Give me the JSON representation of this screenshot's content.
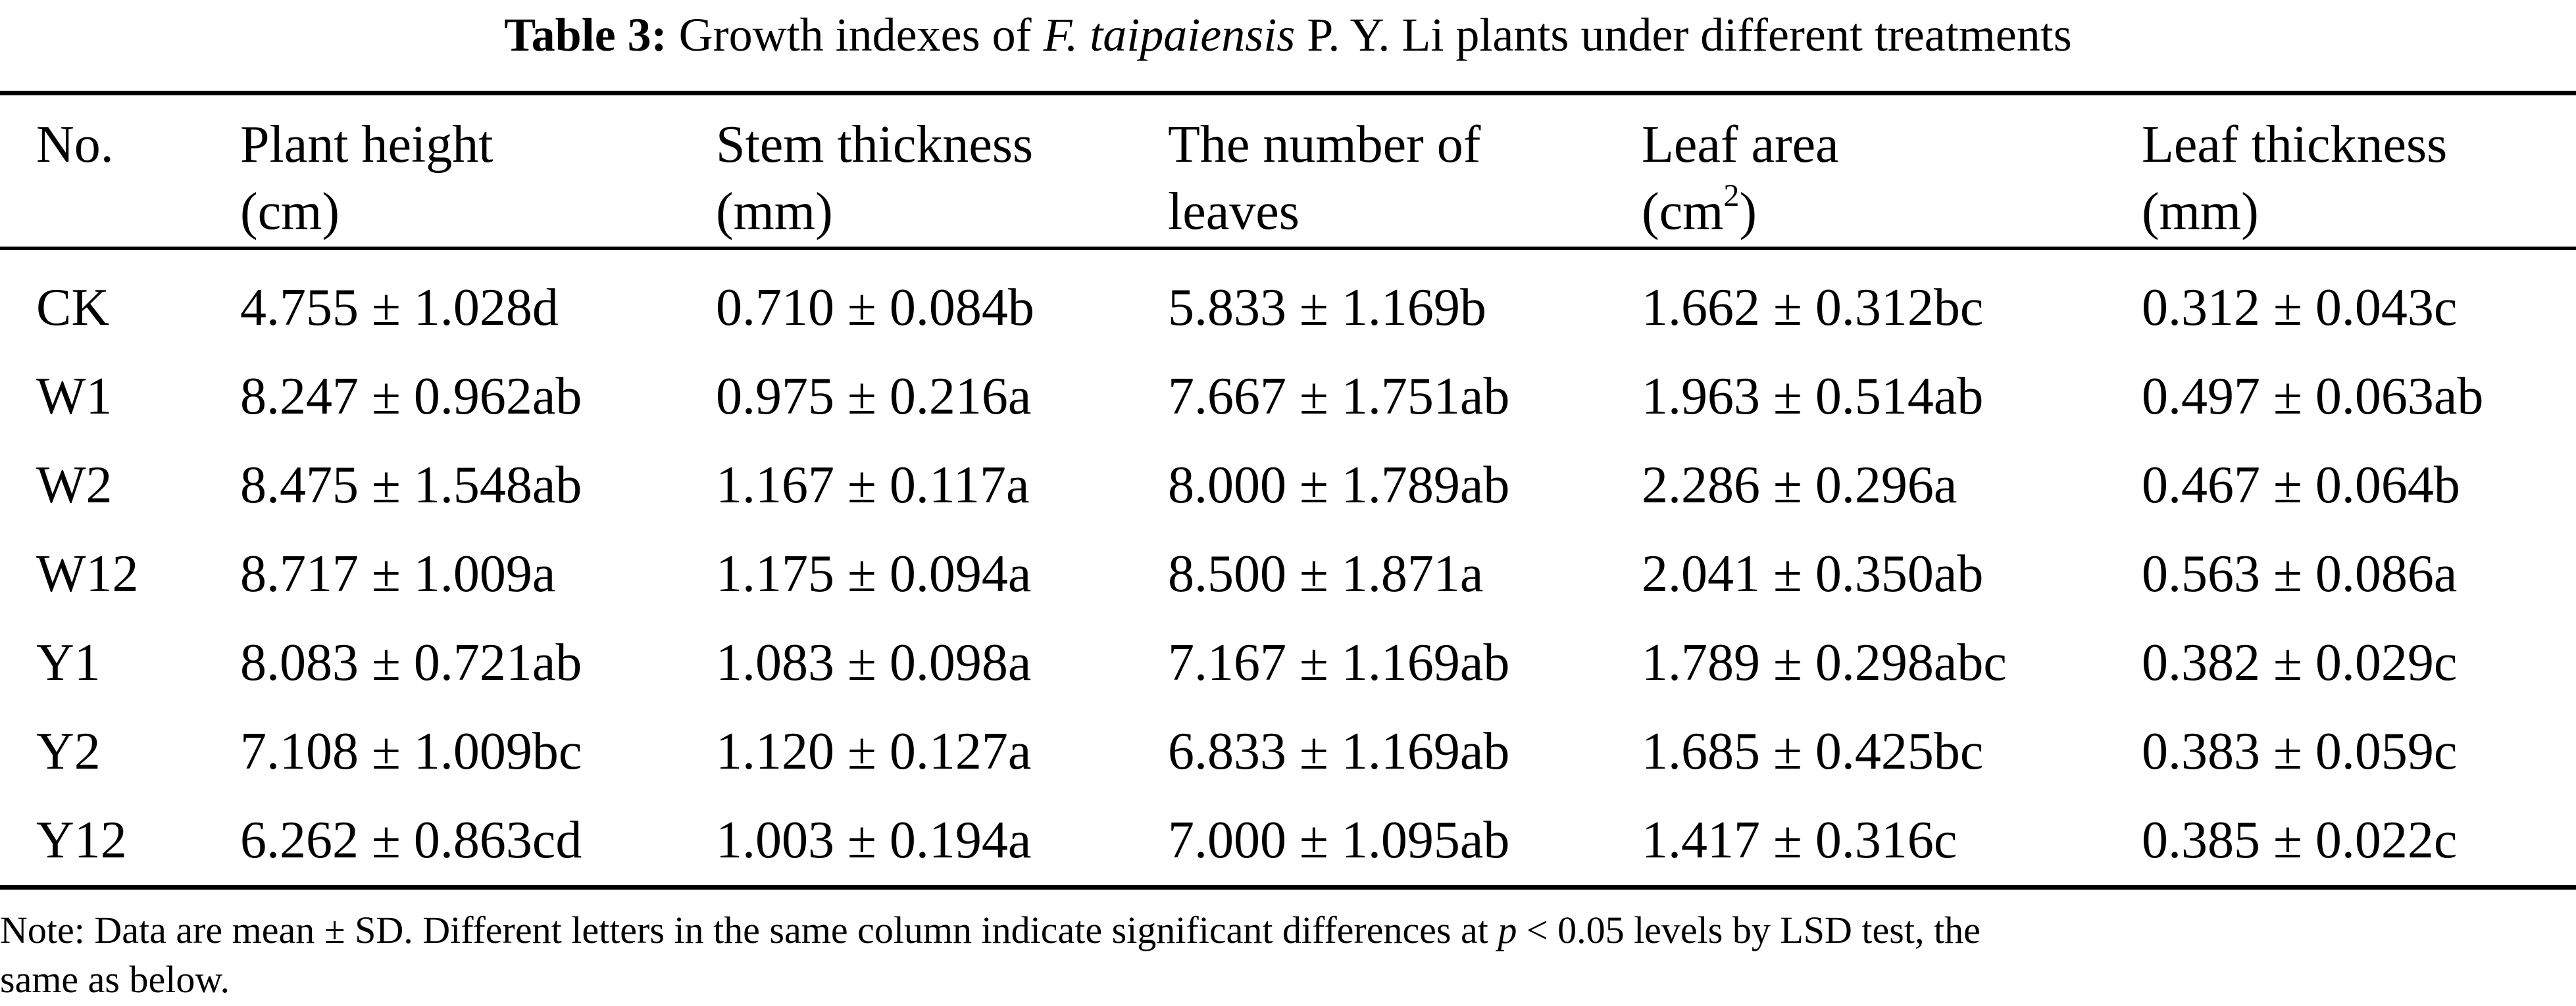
{
  "title": {
    "label": "Table 3:",
    "text_before": " Growth indexes of ",
    "species": "F. taipaiensis",
    "text_after": " P. Y. Li plants under different treatments"
  },
  "columns": [
    {
      "line1": "No.",
      "line2": ""
    },
    {
      "line1": "Plant height",
      "line2": "(cm)"
    },
    {
      "line1": "Stem thickness",
      "line2": "(mm)"
    },
    {
      "line1": "The number of",
      "line2": "leaves"
    },
    {
      "line1": "Leaf area",
      "line2": "(cm",
      "sup": "2",
      "line2_end": ")"
    },
    {
      "line1": "Leaf thickness",
      "line2": "(mm)"
    }
  ],
  "rows": [
    [
      "CK",
      "4.755 ± 1.028d",
      "0.710 ± 0.084b",
      "5.833 ± 1.169b",
      "1.662 ± 0.312bc",
      "0.312 ± 0.043c"
    ],
    [
      "W1",
      "8.247 ± 0.962ab",
      "0.975 ± 0.216a",
      "7.667 ± 1.751ab",
      "1.963 ± 0.514ab",
      "0.497 ± 0.063ab"
    ],
    [
      "W2",
      "8.475 ± 1.548ab",
      "1.167 ± 0.117a",
      "8.000 ± 1.789ab",
      "2.286 ± 0.296a",
      "0.467 ± 0.064b"
    ],
    [
      "W12",
      "8.717 ± 1.009a",
      "1.175 ± 0.094a",
      "8.500 ± 1.871a",
      "2.041 ± 0.350ab",
      "0.563 ± 0.086a"
    ],
    [
      "Y1",
      "8.083 ± 0.721ab",
      "1.083 ± 0.098a",
      "7.167 ± 1.169ab",
      "1.789 ± 0.298abc",
      "0.382 ± 0.029c"
    ],
    [
      "Y2",
      "7.108 ± 1.009bc",
      "1.120 ± 0.127a",
      "6.833 ± 1.169ab",
      "1.685 ± 0.425bc",
      "0.383 ± 0.059c"
    ],
    [
      "Y12",
      "6.262 ± 0.863cd",
      "1.003 ± 0.194a",
      "7.000 ± 1.095ab",
      "1.417 ± 0.316c",
      "0.385 ± 0.022c"
    ]
  ],
  "note": {
    "before": "Note: Data are mean ± SD. Different letters in the same column indicate significant differences at ",
    "p": "p",
    "after": " < 0.05 levels by LSD test, the",
    "line2": "same as below."
  }
}
